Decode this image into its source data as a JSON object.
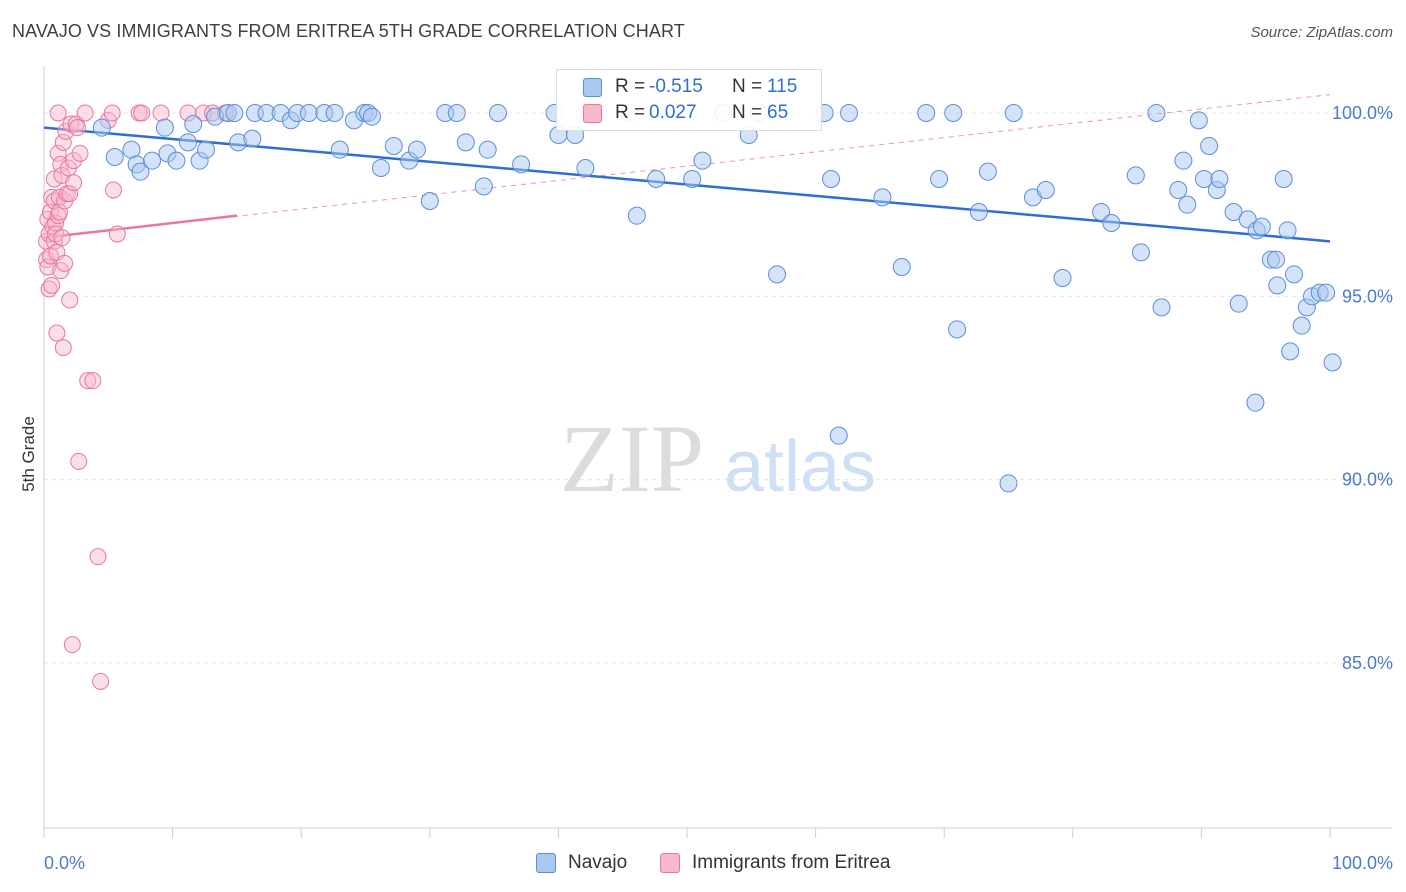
{
  "title": "NAVAJO VS IMMIGRANTS FROM ERITREA 5TH GRADE CORRELATION CHART",
  "source": "Source: ZipAtlas.com",
  "watermark": {
    "zip": "ZIP",
    "atlas": "atlas"
  },
  "colors": {
    "navajo": "#5b8fdb",
    "navajo_fill": "#a9c8f0",
    "eritrea": "#e8779b",
    "eritrea_fill": "#f6b9cc",
    "accent": "#4a7cc9"
  },
  "stats": {
    "navajo": {
      "r_label": "R =",
      "r_value": "-0.515",
      "n_label": "N =",
      "n_value": "115"
    },
    "eritrea": {
      "r_label": "R =",
      "r_value": "0.027",
      "n_label": "N =",
      "n_value": "65"
    }
  },
  "legend": {
    "navajo": "Navajo",
    "eritrea": "Immigrants from Eritrea"
  },
  "chart_data": {
    "type": "scatter",
    "title": "NAVAJO VS IMMIGRANTS FROM ERITREA 5TH GRADE CORRELATION CHART",
    "xlabel": "",
    "ylabel": "5th Grade",
    "xlim": [
      0,
      100
    ],
    "ylim": [
      80.5,
      100.9
    ],
    "x_tick_labels": [
      "0.0%",
      "100.0%"
    ],
    "y_ticks": [
      85,
      90,
      95,
      100
    ],
    "y_tick_labels": [
      "85.0%",
      "90.0%",
      "95.0%",
      "100.0%"
    ],
    "grid": true,
    "legend_position": "bottom",
    "series": [
      {
        "name": "Navajo",
        "trend": {
          "x": [
            0,
            100
          ],
          "y": [
            99.6,
            96.5
          ]
        },
        "points": [
          [
            4.5,
            99.6
          ],
          [
            5.5,
            98.8
          ],
          [
            6.8,
            99.0
          ],
          [
            7.2,
            98.6
          ],
          [
            7.5,
            98.4
          ],
          [
            8.4,
            98.7
          ],
          [
            9.4,
            99.6
          ],
          [
            9.6,
            98.9
          ],
          [
            10.3,
            98.7
          ],
          [
            11.2,
            99.2
          ],
          [
            11.6,
            99.7
          ],
          [
            12.1,
            98.7
          ],
          [
            12.6,
            99.0
          ],
          [
            13.3,
            99.9
          ],
          [
            14.3,
            100.0
          ],
          [
            14.8,
            100.0
          ],
          [
            15.1,
            99.2
          ],
          [
            16.2,
            99.3
          ],
          [
            16.4,
            100.0
          ],
          [
            17.3,
            100.0
          ],
          [
            18.4,
            100.0
          ],
          [
            19.2,
            99.8
          ],
          [
            19.7,
            100.0
          ],
          [
            20.6,
            100.0
          ],
          [
            21.8,
            100.0
          ],
          [
            22.6,
            100.0
          ],
          [
            23.0,
            99.0
          ],
          [
            24.1,
            99.8
          ],
          [
            24.9,
            100.0
          ],
          [
            25.2,
            100.0
          ],
          [
            25.5,
            99.9
          ],
          [
            26.2,
            98.5
          ],
          [
            27.2,
            99.1
          ],
          [
            28.4,
            98.7
          ],
          [
            29.0,
            99.0
          ],
          [
            30.0,
            97.6
          ],
          [
            31.2,
            100.0
          ],
          [
            32.1,
            100.0
          ],
          [
            32.8,
            99.2
          ],
          [
            34.2,
            98.0
          ],
          [
            34.5,
            99.0
          ],
          [
            35.3,
            100.0
          ],
          [
            37.1,
            98.6
          ],
          [
            39.7,
            100.0
          ],
          [
            40.0,
            99.4
          ],
          [
            41.3,
            99.4
          ],
          [
            42.1,
            98.5
          ],
          [
            42.6,
            100.0
          ],
          [
            43.1,
            100.0
          ],
          [
            45.5,
            100.0
          ],
          [
            46.1,
            97.2
          ],
          [
            47.6,
            98.2
          ],
          [
            50.4,
            98.2
          ],
          [
            51.2,
            98.7
          ],
          [
            52.8,
            100.0
          ],
          [
            54.8,
            99.4
          ],
          [
            55.6,
            100.0
          ],
          [
            57.0,
            95.6
          ],
          [
            60.7,
            100.0
          ],
          [
            61.2,
            98.2
          ],
          [
            61.8,
            91.2
          ],
          [
            62.6,
            100.0
          ],
          [
            65.2,
            97.7
          ],
          [
            66.7,
            95.8
          ],
          [
            68.6,
            100.0
          ],
          [
            69.6,
            98.2
          ],
          [
            70.7,
            100.0
          ],
          [
            71.0,
            94.1
          ],
          [
            72.7,
            97.3
          ],
          [
            73.4,
            98.4
          ],
          [
            75.0,
            89.9
          ],
          [
            75.4,
            100.0
          ],
          [
            76.9,
            97.7
          ],
          [
            77.9,
            97.9
          ],
          [
            79.2,
            95.5
          ],
          [
            82.2,
            97.3
          ],
          [
            83.0,
            97.0
          ],
          [
            84.9,
            98.3
          ],
          [
            85.3,
            96.2
          ],
          [
            86.5,
            100.0
          ],
          [
            86.9,
            94.7
          ],
          [
            88.2,
            97.9
          ],
          [
            88.6,
            98.7
          ],
          [
            88.9,
            97.5
          ],
          [
            89.8,
            99.8
          ],
          [
            90.2,
            98.2
          ],
          [
            90.6,
            99.1
          ],
          [
            91.2,
            97.9
          ],
          [
            91.4,
            98.2
          ],
          [
            92.5,
            97.3
          ],
          [
            92.9,
            94.8
          ],
          [
            93.6,
            97.1
          ],
          [
            94.2,
            92.1
          ],
          [
            94.3,
            96.8
          ],
          [
            94.7,
            96.9
          ],
          [
            95.4,
            96.0
          ],
          [
            95.8,
            96.0
          ],
          [
            95.9,
            95.3
          ],
          [
            96.4,
            98.2
          ],
          [
            96.7,
            96.8
          ],
          [
            96.9,
            93.5
          ],
          [
            97.2,
            95.6
          ],
          [
            97.8,
            94.2
          ],
          [
            98.2,
            94.7
          ],
          [
            98.6,
            95.0
          ],
          [
            99.2,
            95.1
          ],
          [
            99.7,
            95.1
          ],
          [
            100.2,
            93.2
          ]
        ]
      },
      {
        "name": "Immigrants from Eritrea",
        "trend": {
          "x": [
            0,
            15
          ],
          "y": [
            96.6,
            97.2
          ]
        },
        "trend_extended": {
          "x": [
            0,
            100
          ],
          "y": [
            96.6,
            100.5
          ]
        },
        "points": [
          [
            0.2,
            96.0
          ],
          [
            0.2,
            96.5
          ],
          [
            0.3,
            97.1
          ],
          [
            0.3,
            95.8
          ],
          [
            0.4,
            96.7
          ],
          [
            0.4,
            95.2
          ],
          [
            0.5,
            97.3
          ],
          [
            0.5,
            96.1
          ],
          [
            0.6,
            97.7
          ],
          [
            0.6,
            95.3
          ],
          [
            0.7,
            96.9
          ],
          [
            0.8,
            96.5
          ],
          [
            0.8,
            97.6
          ],
          [
            0.8,
            98.2
          ],
          [
            0.9,
            97.0
          ],
          [
            0.9,
            96.7
          ],
          [
            1.0,
            96.2
          ],
          [
            1.0,
            94.0
          ],
          [
            1.1,
            97.2
          ],
          [
            1.1,
            98.9
          ],
          [
            1.2,
            97.3
          ],
          [
            1.2,
            97.7
          ],
          [
            1.3,
            98.6
          ],
          [
            1.3,
            95.7
          ],
          [
            1.4,
            98.3
          ],
          [
            1.4,
            96.6
          ],
          [
            1.5,
            99.2
          ],
          [
            1.5,
            93.6
          ],
          [
            1.6,
            97.6
          ],
          [
            1.6,
            95.9
          ],
          [
            1.7,
            99.5
          ],
          [
            1.8,
            97.8
          ],
          [
            1.9,
            98.5
          ],
          [
            2.0,
            97.8
          ],
          [
            2.0,
            94.9
          ],
          [
            2.1,
            99.7
          ],
          [
            2.2,
            85.5
          ],
          [
            2.3,
            98.7
          ],
          [
            2.3,
            98.1
          ],
          [
            2.5,
            99.7
          ],
          [
            2.6,
            99.6
          ],
          [
            2.7,
            90.5
          ],
          [
            2.8,
            98.9
          ],
          [
            3.2,
            100.0
          ],
          [
            3.4,
            92.7
          ],
          [
            3.8,
            92.7
          ],
          [
            4.2,
            87.9
          ],
          [
            4.4,
            84.5
          ],
          [
            5.0,
            99.8
          ],
          [
            5.3,
            100.0
          ],
          [
            5.4,
            97.9
          ],
          [
            5.7,
            96.7
          ],
          [
            7.4,
            100.0
          ],
          [
            7.6,
            100.0
          ],
          [
            9.1,
            100.0
          ],
          [
            11.2,
            100.0
          ],
          [
            12.4,
            100.0
          ],
          [
            13.1,
            100.0
          ],
          [
            14.1,
            100.0
          ],
          [
            1.1,
            100.0
          ]
        ]
      }
    ]
  }
}
